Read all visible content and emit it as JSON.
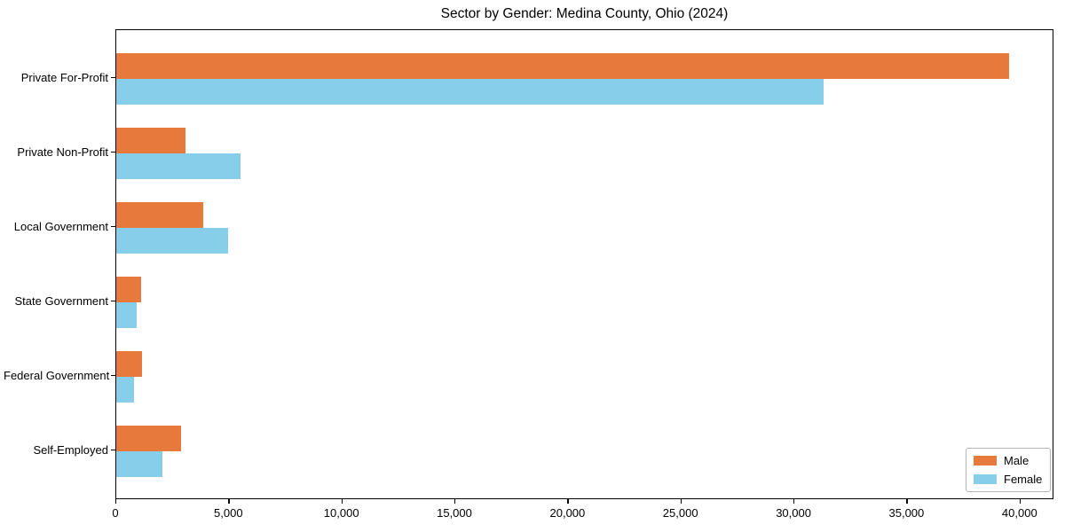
{
  "chart_data": {
    "type": "bar",
    "orientation": "horizontal",
    "title": "Sector by Gender: Medina County, Ohio (2024)",
    "categories": [
      "Private For-Profit",
      "Private Non-Profit",
      "Local Government",
      "State Government",
      "Federal Government",
      "Self-Employed"
    ],
    "series": [
      {
        "name": "Male",
        "color": "#e8793d",
        "values": [
          39500,
          3050,
          3850,
          1100,
          1150,
          2850
        ]
      },
      {
        "name": "Female",
        "color": "#87ceeb",
        "values": [
          31300,
          5500,
          4950,
          900,
          800,
          2050
        ]
      }
    ],
    "xlabel": "",
    "ylabel": "",
    "xlim": [
      0,
      41500
    ],
    "x_ticks": {
      "values": [
        0,
        5000,
        10000,
        15000,
        20000,
        25000,
        30000,
        35000,
        40000
      ],
      "labels": [
        "0",
        "5,000",
        "10,000",
        "15,000",
        "20,000",
        "25,000",
        "30,000",
        "35,000",
        "40,000"
      ]
    },
    "grid": false,
    "legend": {
      "position": "lower right",
      "entries": [
        "Male",
        "Female"
      ]
    }
  }
}
